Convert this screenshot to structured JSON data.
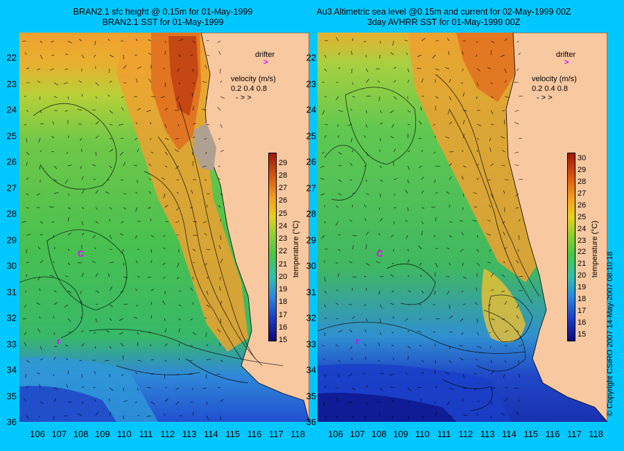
{
  "left_panel": {
    "title_line1": "BRAN2.1 sfc height @ 0.15m for 01-May-1999",
    "title_line2": "BRAN2.1 SST for 01-May-1999"
  },
  "right_panel": {
    "title_line1": "Au3 Altimetric sea level  @0.15m and current for 02-May-1999 00Z",
    "title_line2": "3day AVHRR SST for 01-May-1999 00Z"
  },
  "legend": {
    "drifter_label": "drifter",
    "velocity_title": "velocity (m/s)",
    "velocity_values": "0.2 0.4 0.8",
    "velocity_arrows": "-  >  >"
  },
  "colorbar": {
    "title": "temperature (°C)",
    "left_ticks": [
      "29",
      "28",
      "27",
      "26",
      "25",
      "24",
      "23",
      "22",
      "21",
      "20",
      "19",
      "18",
      "17",
      "16",
      "15"
    ],
    "right_ticks": [
      "30",
      "29",
      "28",
      "27",
      "26",
      "25",
      "24",
      "23",
      "22",
      "21",
      "20",
      "19",
      "18",
      "17",
      "16",
      "15"
    ],
    "left_range": [
      15,
      29.8
    ],
    "right_range": [
      14.5,
      30.5
    ],
    "colors": [
      "#0a0a7a",
      "#1a3ec8",
      "#2a8ae0",
      "#30c0b0",
      "#48c848",
      "#8cd030",
      "#e6d020",
      "#f5a020",
      "#e06010",
      "#a01808"
    ]
  },
  "axes": {
    "latitude_labels": [
      "22",
      "23",
      "24",
      "25",
      "26",
      "27",
      "28",
      "29",
      "30",
      "31",
      "32",
      "33",
      "34",
      "35",
      "36"
    ],
    "longitude_labels": [
      "106",
      "107",
      "108",
      "109",
      "110",
      "111",
      "112",
      "113",
      "114",
      "115",
      "116",
      "117",
      "118"
    ]
  },
  "copyright": "© Copyright CSIRO 2007  14-May-2007 08:10:18",
  "colors": {
    "background": "#00c8ff",
    "land": "#f8c8a0",
    "drifter": "#e000ff"
  }
}
